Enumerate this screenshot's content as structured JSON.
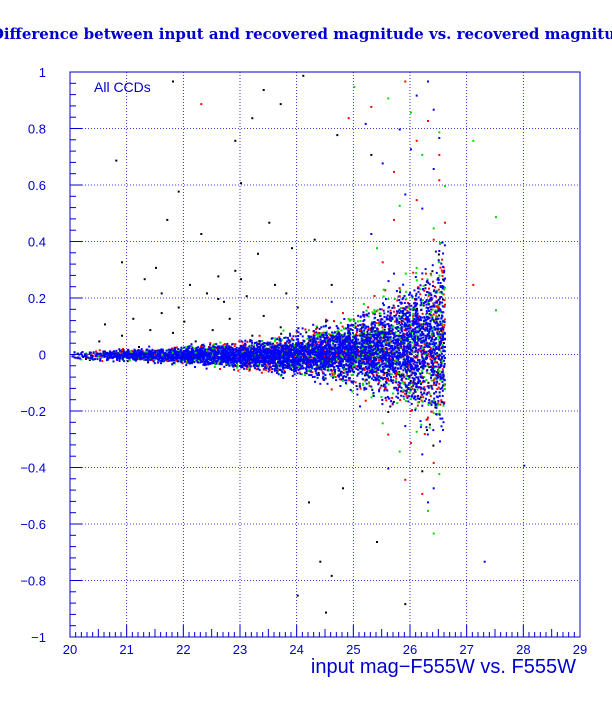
{
  "chart_data": {
    "type": "scatter",
    "title": "Difference between input and recovered magnitude vs. recovered magnitude",
    "xlabel": "input mag−F555W vs. F555W",
    "ylabel": "",
    "xlim": [
      20,
      29
    ],
    "ylim": [
      -1,
      1
    ],
    "xticks": [
      20,
      21,
      22,
      23,
      24,
      25,
      26,
      27,
      28,
      29
    ],
    "yticks": [
      -1,
      -0.8,
      -0.6,
      -0.4,
      -0.2,
      0,
      0.2,
      0.4,
      0.6,
      0.8,
      1
    ],
    "xtick_labels": [
      "20",
      "21",
      "22",
      "23",
      "24",
      "25",
      "26",
      "27",
      "28",
      "29"
    ],
    "ytick_labels": [
      "−1",
      "−0.8",
      "−0.6",
      "−0.4",
      "−0.2",
      "0",
      "0.2",
      "0.4",
      "0.6",
      "0.8",
      "1"
    ],
    "grid": true,
    "annotation": "All CCDs",
    "colors": {
      "axis": "#0000cc",
      "grid": "#0000cc",
      "text": "#0000cc",
      "blue_points": "#0000ff",
      "green_points": "#00dd00",
      "red_points": "#ff0000",
      "black_points": "#000000"
    },
    "series": [
      {
        "color": "#000000",
        "points": [
          [
            20.8,
            0.69
          ],
          [
            21.8,
            0.97
          ],
          [
            23.4,
            0.94
          ],
          [
            24.1,
            0.99
          ],
          [
            23.7,
            0.89
          ],
          [
            21.9,
            0.58
          ],
          [
            23.0,
            0.61
          ],
          [
            22.3,
            0.43
          ],
          [
            21.7,
            0.48
          ],
          [
            23.5,
            0.47
          ],
          [
            20.9,
            0.33
          ],
          [
            21.3,
            0.27
          ],
          [
            21.6,
            0.22
          ],
          [
            21.9,
            0.17
          ],
          [
            22.1,
            0.25
          ],
          [
            22.6,
            0.28
          ],
          [
            22.9,
            0.3
          ],
          [
            23.3,
            0.36
          ],
          [
            23.9,
            0.38
          ],
          [
            24.3,
            0.41
          ],
          [
            22.4,
            0.22
          ],
          [
            22.7,
            0.19
          ],
          [
            23.0,
            0.27
          ],
          [
            23.1,
            0.21
          ],
          [
            23.6,
            0.25
          ],
          [
            20.6,
            0.11
          ],
          [
            20.9,
            0.07
          ],
          [
            21.1,
            0.13
          ],
          [
            21.4,
            0.09
          ],
          [
            21.6,
            0.15
          ],
          [
            21.8,
            0.08
          ],
          [
            22.0,
            0.12
          ],
          [
            22.2,
            0.05
          ],
          [
            22.5,
            0.09
          ],
          [
            22.8,
            0.13
          ],
          [
            23.2,
            0.07
          ],
          [
            23.4,
            0.14
          ],
          [
            23.7,
            0.1
          ],
          [
            24.0,
            0.17
          ],
          [
            24.5,
            0.12
          ],
          [
            20.5,
            0.05
          ],
          [
            21.2,
            0.03
          ],
          [
            22.6,
            0.2
          ],
          [
            23.8,
            0.22
          ],
          [
            24.6,
            0.25
          ],
          [
            24.2,
            -0.52
          ],
          [
            24.4,
            -0.73
          ],
          [
            24.6,
            -0.78
          ],
          [
            24.5,
            -0.91
          ],
          [
            24.0,
            -0.85
          ],
          [
            25.4,
            -0.66
          ],
          [
            24.8,
            -0.47
          ],
          [
            25.9,
            -0.88
          ],
          [
            26.2,
            -0.41
          ],
          [
            25.6,
            -0.2
          ],
          [
            22.9,
            0.76
          ],
          [
            23.2,
            0.84
          ],
          [
            24.7,
            0.78
          ],
          [
            25.3,
            0.71
          ],
          [
            21.5,
            0.31
          ]
        ]
      },
      {
        "color": "#ff0000",
        "points": [
          [
            22.3,
            0.89
          ],
          [
            24.9,
            0.84
          ],
          [
            25.3,
            0.88
          ],
          [
            25.9,
            0.97
          ],
          [
            26.3,
            0.83
          ],
          [
            26.5,
            0.62
          ],
          [
            26.1,
            0.55
          ],
          [
            25.7,
            0.48
          ],
          [
            26.4,
            0.41
          ],
          [
            25.5,
            0.33
          ],
          [
            26.2,
            0.27
          ],
          [
            26.6,
            0.18
          ],
          [
            25.8,
            0.21
          ],
          [
            24.8,
            0.15
          ],
          [
            25.1,
            0.09
          ],
          [
            26.5,
            -0.1
          ],
          [
            26.3,
            -0.22
          ],
          [
            26.0,
            -0.31
          ],
          [
            25.6,
            -0.28
          ],
          [
            26.4,
            -0.38
          ],
          [
            25.9,
            -0.44
          ],
          [
            26.2,
            -0.49
          ],
          [
            24.6,
            -0.12
          ],
          [
            25.2,
            -0.16
          ],
          [
            23.9,
            0.06
          ],
          [
            22.9,
            0.04
          ],
          [
            21.7,
            -0.02
          ],
          [
            20.9,
            0.02
          ],
          [
            23.4,
            -0.05
          ],
          [
            24.3,
            0.08
          ],
          [
            26.6,
            0.47
          ],
          [
            26.5,
            0.71
          ],
          [
            26.1,
            0.76
          ],
          [
            25.7,
            0.65
          ],
          [
            27.1,
            0.25
          ]
        ]
      },
      {
        "color": "#00dd00",
        "points": [
          [
            25.0,
            0.95
          ],
          [
            25.6,
            0.91
          ],
          [
            26.0,
            0.86
          ],
          [
            26.5,
            0.79
          ],
          [
            26.2,
            0.71
          ],
          [
            26.6,
            0.6
          ],
          [
            25.8,
            0.53
          ],
          [
            26.4,
            0.45
          ],
          [
            25.4,
            0.38
          ],
          [
            26.1,
            0.31
          ],
          [
            26.6,
            0.24
          ],
          [
            25.6,
            0.2
          ],
          [
            24.9,
            0.13
          ],
          [
            24.2,
            0.09
          ],
          [
            23.6,
            0.05
          ],
          [
            26.4,
            -0.16
          ],
          [
            26.1,
            -0.27
          ],
          [
            25.8,
            -0.34
          ],
          [
            26.5,
            -0.42
          ],
          [
            26.3,
            -0.55
          ],
          [
            26.4,
            -0.63
          ],
          [
            25.5,
            -0.24
          ],
          [
            24.8,
            -0.09
          ],
          [
            23.3,
            -0.03
          ],
          [
            22.2,
            0.01
          ],
          [
            27.1,
            0.76
          ],
          [
            27.5,
            0.49
          ],
          [
            27.5,
            0.16
          ],
          [
            26.0,
            0.11
          ],
          [
            26.5,
            0.33
          ]
        ]
      },
      {
        "color": "#0000ff",
        "points": [
          [
            25.2,
            0.82
          ],
          [
            26.3,
            0.97
          ],
          [
            26.0,
            0.73
          ],
          [
            25.5,
            0.68
          ],
          [
            26.4,
            0.66
          ],
          [
            25.9,
            0.57
          ],
          [
            26.2,
            0.52
          ],
          [
            25.3,
            0.43
          ],
          [
            26.5,
            0.37
          ],
          [
            25.7,
            0.29
          ],
          [
            24.6,
            0.19
          ],
          [
            25.9,
            -0.25
          ],
          [
            26.2,
            -0.35
          ],
          [
            26.4,
            -0.47
          ],
          [
            26.3,
            -0.52
          ],
          [
            25.6,
            -0.4
          ],
          [
            25.1,
            -0.18
          ],
          [
            24.4,
            -0.1
          ],
          [
            27.3,
            -0.73
          ],
          [
            28.0,
            -0.39
          ],
          [
            26.1,
            0.92
          ],
          [
            26.4,
            0.87
          ],
          [
            25.8,
            0.8
          ],
          [
            26.5,
            0.77
          ],
          [
            26.6,
            0.03
          ]
        ]
      }
    ],
    "bands": [
      {
        "x": [
          20.0,
          20.5,
          21.0,
          21.5,
          22.0,
          22.5,
          23.0,
          23.5,
          24.0,
          24.5,
          25.0,
          25.5,
          26.0,
          26.3,
          26.6
        ],
        "halfwidth": [
          0.02,
          0.025,
          0.03,
          0.035,
          0.045,
          0.055,
          0.065,
          0.08,
          0.1,
          0.13,
          0.17,
          0.23,
          0.32,
          0.42,
          0.5
        ],
        "bias": [
          0.0,
          0.0,
          0.0,
          0.0,
          0.0,
          0.0,
          0.0,
          0.0,
          0.005,
          0.01,
          0.015,
          0.02,
          0.03,
          0.04,
          0.05
        ]
      }
    ]
  }
}
